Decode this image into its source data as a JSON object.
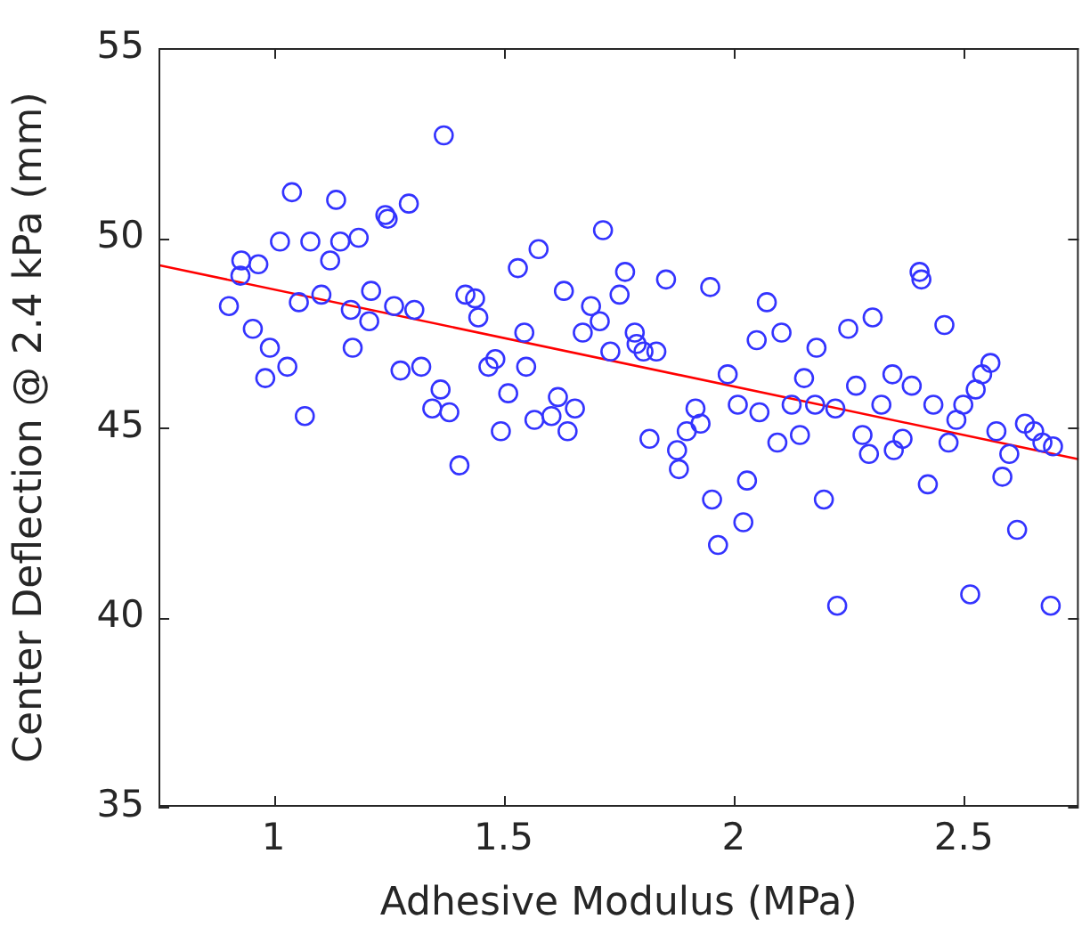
{
  "chart_data": {
    "type": "scatter",
    "xlabel": "Adhesive Modulus (MPa)",
    "ylabel": "Center Deflection @ 2.4 kPa (mm)",
    "xlim": [
      0.75,
      2.75
    ],
    "ylim": [
      35,
      55
    ],
    "xticks": [
      1,
      1.5,
      2,
      2.5
    ],
    "yticks": [
      35,
      40,
      45,
      50,
      55
    ],
    "marker": "circle",
    "series": [
      {
        "color": "#3333ff",
        "x": [
          1.37,
          1.04,
          1.136,
          1.243,
          1.248,
          1.294,
          1.014,
          1.08,
          1.145,
          1.185,
          0.93,
          0.967,
          1.123,
          0.928,
          0.903,
          1.055,
          1.104,
          1.168,
          1.212,
          1.262,
          1.306,
          0.955,
          1.208,
          0.992,
          1.172,
          0.982,
          1.03,
          1.276,
          1.321,
          1.363,
          1.345,
          1.382,
          1.068,
          1.404,
          1.716,
          1.576,
          1.531,
          1.417,
          1.438,
          1.631,
          1.764,
          1.752,
          1.69,
          1.853,
          1.949,
          1.445,
          1.545,
          1.709,
          1.672,
          1.785,
          1.789,
          1.804,
          1.832,
          1.732,
          2.05,
          2.072,
          1.987,
          2.009,
          2.056,
          1.467,
          1.482,
          1.549,
          1.51,
          1.618,
          1.655,
          1.604,
          1.567,
          1.639,
          1.494,
          1.917,
          1.898,
          1.928,
          1.817,
          1.877,
          1.881,
          1.953,
          2.029,
          2.021,
          1.966,
          2.404,
          2.408,
          2.104,
          2.302,
          2.249,
          2.458,
          2.18,
          2.153,
          2.345,
          2.387,
          2.266,
          2.558,
          2.54,
          2.526,
          2.499,
          2.484,
          2.126,
          2.177,
          2.221,
          2.321,
          2.434,
          2.095,
          2.144,
          2.28,
          2.294,
          2.348,
          2.367,
          2.467,
          2.571,
          2.599,
          2.584,
          2.633,
          2.653,
          2.671,
          2.694,
          2.422,
          2.196,
          2.616,
          2.514,
          2.225,
          2.689
        ],
        "values": [
          52.7,
          51.2,
          51.0,
          50.6,
          50.5,
          50.9,
          49.9,
          49.9,
          49.9,
          50.0,
          49.4,
          49.3,
          49.4,
          49.0,
          48.2,
          48.3,
          48.5,
          48.1,
          48.6,
          48.2,
          48.1,
          47.6,
          47.8,
          47.1,
          47.1,
          46.3,
          46.6,
          46.5,
          46.6,
          46.0,
          45.5,
          45.4,
          45.3,
          44.0,
          50.2,
          49.7,
          49.2,
          48.5,
          48.4,
          48.6,
          49.1,
          48.5,
          48.2,
          48.9,
          48.7,
          47.9,
          47.5,
          47.8,
          47.5,
          47.5,
          47.2,
          47.0,
          47.0,
          47.0,
          47.3,
          48.3,
          46.4,
          45.6,
          45.4,
          46.6,
          46.8,
          46.6,
          45.9,
          45.8,
          45.5,
          45.3,
          45.2,
          44.9,
          44.9,
          45.5,
          44.9,
          45.1,
          44.7,
          44.4,
          43.9,
          43.1,
          43.6,
          42.5,
          41.9,
          49.1,
          48.9,
          47.5,
          47.9,
          47.6,
          47.7,
          47.1,
          46.3,
          46.4,
          46.1,
          46.1,
          46.7,
          46.4,
          46.0,
          45.6,
          45.2,
          45.6,
          45.6,
          45.5,
          45.6,
          45.6,
          44.6,
          44.8,
          44.8,
          44.3,
          44.4,
          44.7,
          44.6,
          44.9,
          44.3,
          43.7,
          45.1,
          44.9,
          44.6,
          44.5,
          43.5,
          43.1,
          42.3,
          40.6,
          40.3,
          40.3
        ]
      },
      {
        "type": "line",
        "marker": "none",
        "color": "#ff0000",
        "x": [
          0.75,
          2.75
        ],
        "values": [
          49.28,
          44.16
        ]
      }
    ]
  }
}
